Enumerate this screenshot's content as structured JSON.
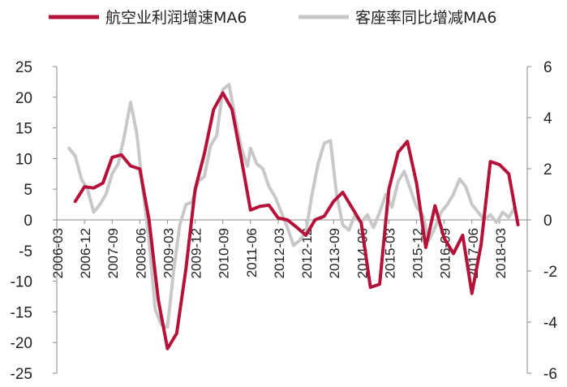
{
  "chart_data": {
    "type": "line",
    "title": "",
    "legend_position": "top",
    "grid": false,
    "x_categories": [
      "2006-03",
      "2006-12",
      "2007-09",
      "2008-06",
      "2009-03",
      "2009-12",
      "2010-09",
      "2011-06",
      "2012-03",
      "2012-12",
      "2013-09",
      "2014-06",
      "2015-03",
      "2015-12",
      "2016-09",
      "2017-06",
      "2018-03"
    ],
    "x_range": [
      "2006-03",
      "2018-12"
    ],
    "y_left": {
      "min": -25,
      "max": 25,
      "ticks": [
        "-25",
        "-20",
        "-15",
        "-10",
        "-5",
        "0",
        "5",
        "10",
        "15",
        "20",
        "25"
      ]
    },
    "y_right": {
      "min": -6,
      "max": 6,
      "ticks": [
        "-6",
        "-4",
        "-2",
        "0",
        "2",
        "4",
        "6"
      ]
    },
    "series": [
      {
        "name": "航空业利润增速MA6",
        "axis": "left",
        "color": "#b5123a",
        "points": [
          [
            "2006-09",
            3.0
          ],
          [
            "2006-12",
            5.4
          ],
          [
            "2007-03",
            5.2
          ],
          [
            "2007-06",
            6.0
          ],
          [
            "2007-09",
            10.2
          ],
          [
            "2007-12",
            10.6
          ],
          [
            "2008-03",
            8.8
          ],
          [
            "2008-06",
            8.3
          ],
          [
            "2008-09",
            0.0
          ],
          [
            "2008-12",
            -13.0
          ],
          [
            "2009-03",
            -21.0
          ],
          [
            "2009-06",
            -18.5
          ],
          [
            "2009-09",
            -8.0
          ],
          [
            "2009-12",
            5.0
          ],
          [
            "2010-03",
            10.8
          ],
          [
            "2010-06",
            18.0
          ],
          [
            "2010-09",
            20.7
          ],
          [
            "2010-12",
            18.0
          ],
          [
            "2011-03",
            10.0
          ],
          [
            "2011-06",
            1.6
          ],
          [
            "2011-09",
            2.2
          ],
          [
            "2011-12",
            2.4
          ],
          [
            "2012-03",
            0.3
          ],
          [
            "2012-06",
            0.0
          ],
          [
            "2012-09",
            -1.2
          ],
          [
            "2012-12",
            -2.5
          ],
          [
            "2013-03",
            0.0
          ],
          [
            "2013-06",
            0.6
          ],
          [
            "2013-09",
            3.0
          ],
          [
            "2013-12",
            4.5
          ],
          [
            "2014-03",
            2.0
          ],
          [
            "2014-06",
            -0.5
          ],
          [
            "2014-09",
            -11.0
          ],
          [
            "2014-12",
            -10.5
          ],
          [
            "2015-03",
            5.0
          ],
          [
            "2015-06",
            11.0
          ],
          [
            "2015-09",
            12.8
          ],
          [
            "2015-12",
            6.0
          ],
          [
            "2016-03",
            -4.5
          ],
          [
            "2016-06",
            2.3
          ],
          [
            "2016-09",
            -3.0
          ],
          [
            "2016-12",
            -5.5
          ],
          [
            "2017-03",
            -2.5
          ],
          [
            "2017-06",
            -12.0
          ],
          [
            "2017-09",
            -4.0
          ],
          [
            "2017-12",
            9.5
          ],
          [
            "2018-03",
            9.0
          ],
          [
            "2018-06",
            7.5
          ],
          [
            "2018-09",
            -0.8
          ]
        ]
      },
      {
        "name": "客座率同比增减MA6",
        "axis": "right",
        "color": "#c8c8c8",
        "points": [
          [
            "2006-07",
            2.8
          ],
          [
            "2006-09",
            2.5
          ],
          [
            "2006-11",
            1.6
          ],
          [
            "2007-01",
            1.2
          ],
          [
            "2007-03",
            0.3
          ],
          [
            "2007-05",
            0.6
          ],
          [
            "2007-07",
            1.0
          ],
          [
            "2007-09",
            1.8
          ],
          [
            "2007-11",
            2.2
          ],
          [
            "2008-01",
            3.3
          ],
          [
            "2008-03",
            4.6
          ],
          [
            "2008-05",
            3.4
          ],
          [
            "2008-07",
            1.2
          ],
          [
            "2008-09",
            -0.8
          ],
          [
            "2008-11",
            -3.5
          ],
          [
            "2009-01",
            -4.1
          ],
          [
            "2009-03",
            -4.2
          ],
          [
            "2009-05",
            -2.0
          ],
          [
            "2009-07",
            -0.2
          ],
          [
            "2009-09",
            0.6
          ],
          [
            "2009-11",
            0.7
          ],
          [
            "2010-01",
            1.5
          ],
          [
            "2010-03",
            1.7
          ],
          [
            "2010-05",
            2.9
          ],
          [
            "2010-07",
            3.3
          ],
          [
            "2010-09",
            5.1
          ],
          [
            "2010-11",
            5.3
          ],
          [
            "2011-01",
            4.0
          ],
          [
            "2011-03",
            2.8
          ],
          [
            "2011-05",
            2.1
          ],
          [
            "2011-06",
            2.8
          ],
          [
            "2011-08",
            2.2
          ],
          [
            "2011-10",
            2.0
          ],
          [
            "2011-12",
            1.3
          ],
          [
            "2012-02",
            0.9
          ],
          [
            "2012-04",
            0.3
          ],
          [
            "2012-06",
            -0.3
          ],
          [
            "2012-08",
            -1.0
          ],
          [
            "2012-10",
            -0.8
          ],
          [
            "2012-12",
            -0.5
          ],
          [
            "2013-02",
            1.0
          ],
          [
            "2013-04",
            2.2
          ],
          [
            "2013-06",
            3.0
          ],
          [
            "2013-08",
            3.1
          ],
          [
            "2013-10",
            1.0
          ],
          [
            "2013-12",
            -0.2
          ],
          [
            "2014-02",
            -0.4
          ],
          [
            "2014-04",
            0.2
          ],
          [
            "2014-06",
            -0.1
          ],
          [
            "2014-08",
            0.2
          ],
          [
            "2014-10",
            -0.3
          ],
          [
            "2014-12",
            0.3
          ],
          [
            "2015-02",
            1.0
          ],
          [
            "2015-04",
            0.5
          ],
          [
            "2015-06",
            1.5
          ],
          [
            "2015-08",
            1.9
          ],
          [
            "2015-10",
            1.2
          ],
          [
            "2015-12",
            0.5
          ],
          [
            "2016-02",
            0.2
          ],
          [
            "2016-04",
            -0.8
          ],
          [
            "2016-06",
            -0.3
          ],
          [
            "2016-08",
            0.3
          ],
          [
            "2016-10",
            0.6
          ],
          [
            "2016-12",
            1.0
          ],
          [
            "2017-02",
            1.6
          ],
          [
            "2017-04",
            1.3
          ],
          [
            "2017-06",
            0.6
          ],
          [
            "2017-08",
            0.3
          ],
          [
            "2017-10",
            0.0
          ],
          [
            "2017-12",
            0.2
          ],
          [
            "2018-02",
            -0.1
          ],
          [
            "2018-04",
            0.3
          ],
          [
            "2018-06",
            0.1
          ],
          [
            "2018-08",
            0.5
          ]
        ]
      }
    ]
  }
}
